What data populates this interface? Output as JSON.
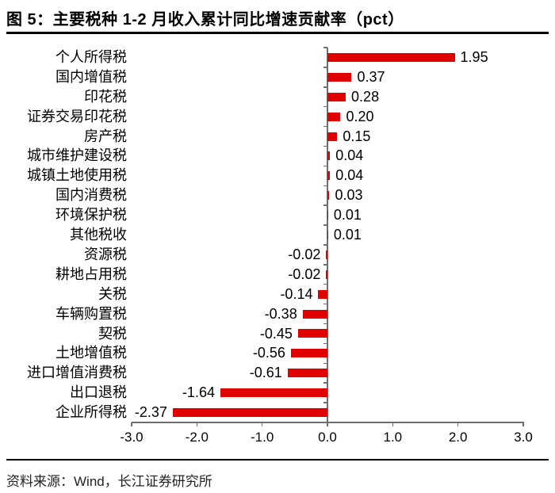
{
  "figure": {
    "title": "图 5：主要税种 1-2 月收入累计同比增速贡献率（pct）",
    "source": "资料来源：Wind，长江证券研究所"
  },
  "chart_data": {
    "type": "bar",
    "orientation": "horizontal",
    "title": "主要税种 1-2 月收入累计同比增速贡献率（pct）",
    "categories": [
      "个人所得税",
      "国内增值税",
      "印花税",
      "证券交易印花税",
      "房产税",
      "城市维护建设税",
      "城镇土地使用税",
      "国内消费税",
      "环境保护税",
      "其他税收",
      "资源税",
      "耕地占用税",
      "关税",
      "车辆购置税",
      "契税",
      "土地增值税",
      "进口增值消费税",
      "出口退税",
      "企业所得税"
    ],
    "values": [
      1.95,
      0.37,
      0.28,
      0.2,
      0.15,
      0.04,
      0.04,
      0.03,
      0.01,
      0.01,
      -0.02,
      -0.02,
      -0.14,
      -0.38,
      -0.45,
      -0.56,
      -0.61,
      -1.64,
      -2.37
    ],
    "value_labels": [
      "1.95",
      "0.37",
      "0.28",
      "0.20",
      "0.15",
      "0.04",
      "0.04",
      "0.03",
      "0.01",
      "0.01",
      "-0.02",
      "-0.02",
      "-0.14",
      "-0.38",
      "-0.45",
      "-0.56",
      "-0.61",
      "-1.64",
      "-2.37"
    ],
    "xlabel": "",
    "ylabel": "",
    "xlim": [
      -3.0,
      3.0
    ],
    "xtick_labels": [
      "-3.0",
      "-2.0",
      "-1.0",
      "0.0",
      "1.0",
      "2.0",
      "3.0"
    ],
    "xtick_values": [
      -3,
      -2,
      -1,
      0,
      1,
      2,
      3
    ],
    "grid": false,
    "legend": "none",
    "bar_color": "#e00000",
    "axis_color": "#6e6e6e",
    "text_color": "#000000"
  }
}
